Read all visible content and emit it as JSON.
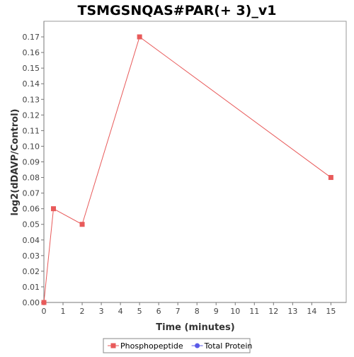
{
  "chart_data": {
    "type": "line",
    "title": "TSMGSNQAS#PAR(+ 3)_v1",
    "xlabel": "Time (minutes)",
    "ylabel": "log2(dDAVP/Control)",
    "xlim": [
      0,
      15.8
    ],
    "ylim": [
      0,
      0.18
    ],
    "xticks": [
      0,
      1,
      2,
      3,
      4,
      5,
      6,
      7,
      8,
      9,
      10,
      11,
      12,
      13,
      14,
      15
    ],
    "yticks": [
      0,
      0.01,
      0.02,
      0.03,
      0.04,
      0.05,
      0.06,
      0.07,
      0.08,
      0.09,
      0.1,
      0.11,
      0.12,
      0.13,
      0.14,
      0.15,
      0.16,
      0.17
    ],
    "ytick_labels": [
      "0.00",
      "0.01",
      "0.02",
      "0.03",
      "0.04",
      "0.05",
      "0.06",
      "0.07",
      "0.08",
      "0.09",
      "0.10",
      "0.11",
      "0.12",
      "0.13",
      "0.14",
      "0.15",
      "0.16",
      "0.17"
    ],
    "grid": false,
    "legend_position": "bottom-center",
    "series": [
      {
        "name": "Phosphopeptide",
        "color": "#e85a5a",
        "marker": "square",
        "points": [
          {
            "x": 0,
            "y": 0.0
          },
          {
            "x": 0.5,
            "y": 0.06
          },
          {
            "x": 2,
            "y": 0.05
          },
          {
            "x": 5,
            "y": 0.17
          },
          {
            "x": 15,
            "y": 0.08
          }
        ]
      },
      {
        "name": "Total Protein",
        "color": "#5a5ae8",
        "marker": "circle",
        "points": []
      }
    ]
  }
}
